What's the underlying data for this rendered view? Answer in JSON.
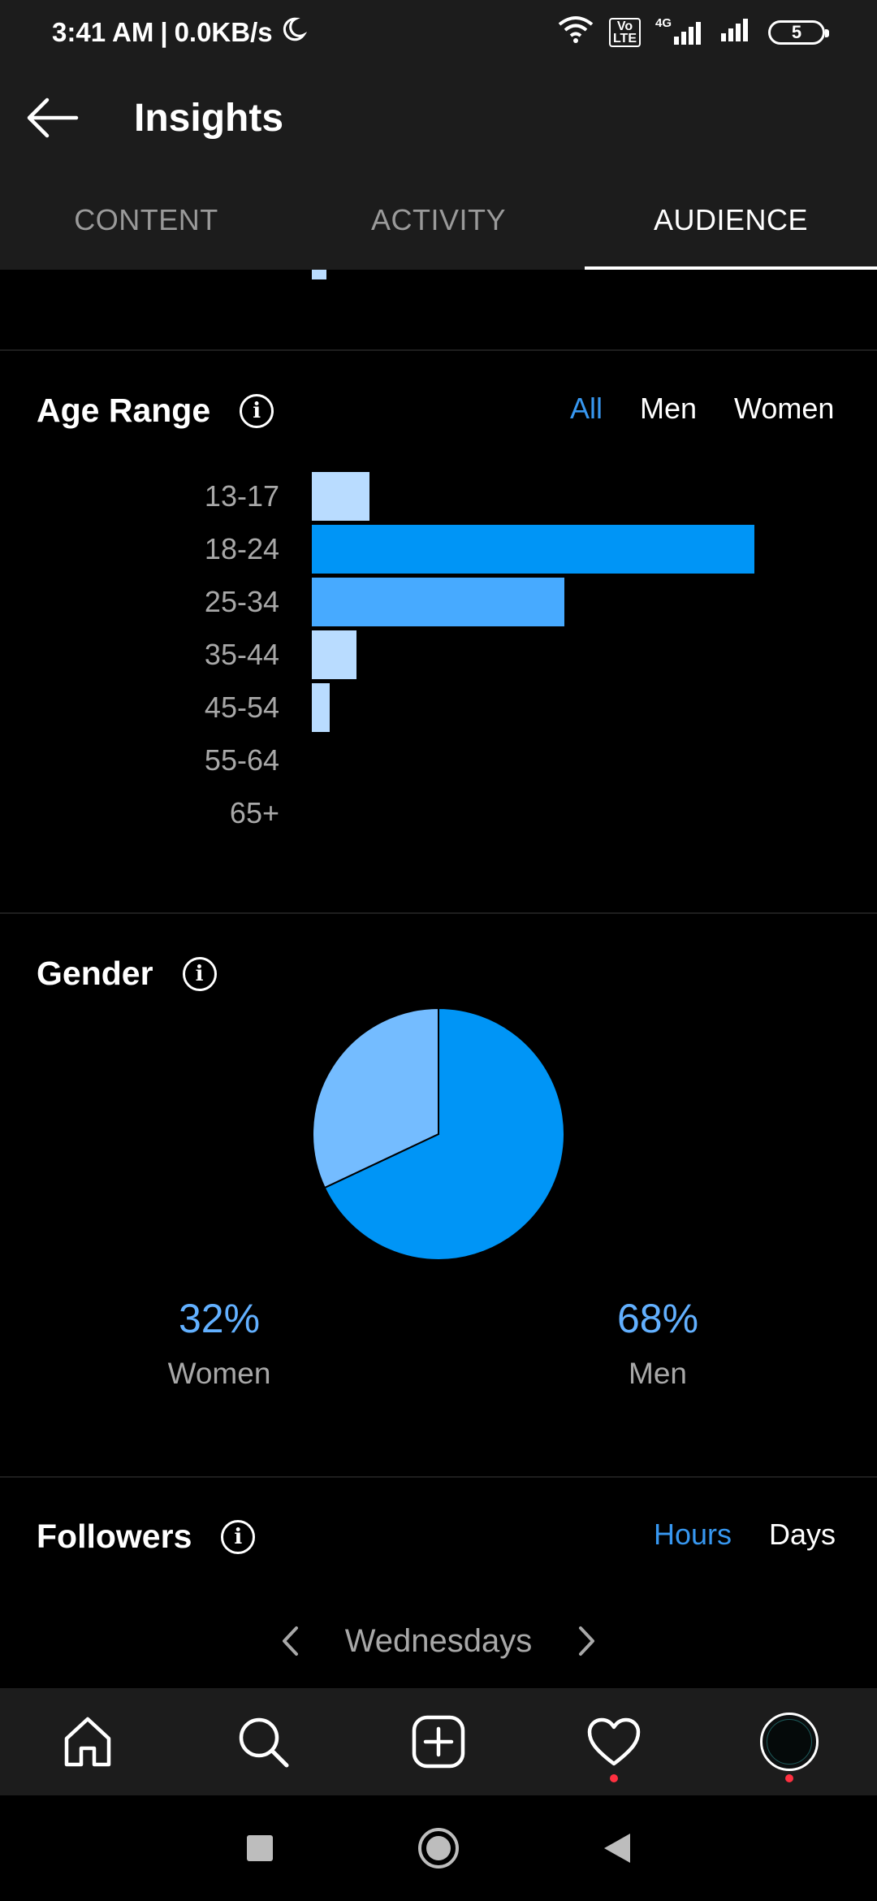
{
  "status_bar": {
    "time": "3:41 AM",
    "speed": "0.0KB/s",
    "volte": "Vo\nLTE",
    "network": "4G",
    "battery": "5"
  },
  "header": {
    "title": "Insights"
  },
  "tabs": [
    {
      "label": "CONTENT",
      "active": false
    },
    {
      "label": "ACTIVITY",
      "active": false
    },
    {
      "label": "AUDIENCE",
      "active": true
    }
  ],
  "age_range": {
    "title": "Age Range",
    "filters": [
      "All",
      "Men",
      "Women"
    ],
    "active_filter": "All"
  },
  "chart_data": [
    {
      "type": "bar",
      "orientation": "horizontal",
      "title": "Age Range",
      "categories": [
        "13-17",
        "18-24",
        "25-34",
        "35-44",
        "45-54",
        "55-64",
        "65+"
      ],
      "values": [
        13,
        100,
        57,
        10,
        4,
        0,
        0
      ],
      "colors": [
        "#b9dcff",
        "#0095f6",
        "#47aaff",
        "#b9dcff",
        "#b9dcff",
        "#b9dcff",
        "#b9dcff"
      ]
    },
    {
      "type": "pie",
      "title": "Gender",
      "categories": [
        "Women",
        "Men"
      ],
      "values": [
        32,
        68
      ],
      "colors": [
        "#74bcff",
        "#0095f6"
      ]
    }
  ],
  "gender": {
    "title": "Gender",
    "women_pct": "32%",
    "women_label": "Women",
    "men_pct": "68%",
    "men_label": "Men"
  },
  "followers": {
    "title": "Followers",
    "filters": [
      "Hours",
      "Days"
    ],
    "active_filter": "Hours",
    "day": "Wednesdays"
  },
  "colors": {
    "accent": "#3797f0",
    "notification_dot": "#ff3040"
  },
  "bottom_nav": [
    "home-icon",
    "search-icon",
    "new-post-icon",
    "activity-heart-icon",
    "profile-avatar"
  ]
}
